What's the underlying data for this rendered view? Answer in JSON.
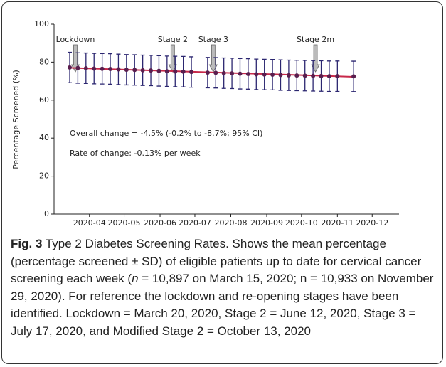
{
  "chart_data": {
    "type": "errorbar-line",
    "ylabel": "Percentage Screened (%)",
    "x": [
      0,
      1,
      2,
      3,
      4,
      5,
      6,
      7,
      8,
      9,
      10,
      11,
      12,
      13,
      14,
      15,
      16,
      17,
      18,
      19,
      20,
      21,
      22,
      23,
      24,
      25,
      26,
      27,
      28,
      29,
      30,
      31,
      32,
      33,
      34,
      35
    ],
    "values": [
      77.2,
      76.9,
      76.8,
      76.6,
      76.5,
      76.4,
      76.2,
      76.0,
      75.9,
      75.7,
      75.6,
      75.4,
      75.2,
      75.1,
      75.0,
      74.8,
      null,
      74.5,
      74.4,
      74.2,
      74.1,
      73.9,
      73.8,
      73.6,
      73.5,
      73.4,
      73.2,
      73.1,
      73.0,
      72.9,
      72.8,
      72.7,
      72.6,
      72.6,
      null,
      72.5
    ],
    "errors": [
      8,
      8,
      8,
      8,
      8,
      8,
      8,
      8,
      8,
      8,
      8,
      8,
      8,
      8,
      8,
      8,
      null,
      8,
      8,
      8,
      8,
      8,
      8,
      8,
      8,
      8,
      8,
      8,
      8,
      8,
      8,
      8,
      8,
      8,
      null,
      8
    ],
    "color": "#5a1e4e",
    "error_color": "#2b2670",
    "trend": {
      "x": [
        0,
        35
      ],
      "values": [
        77.0,
        72.3
      ],
      "color": "#c8294a"
    },
    "xlim": [
      -1.93,
      40.6
    ],
    "ylim": [
      0,
      100
    ],
    "xticks": [
      {
        "value": 2.43,
        "label": "2020-04"
      },
      {
        "value": 6.71,
        "label": "2020-05"
      },
      {
        "value": 11.14,
        "label": "2020-06"
      },
      {
        "value": 15.43,
        "label": "2020-07"
      },
      {
        "value": 19.86,
        "label": "2020-08"
      },
      {
        "value": 24.29,
        "label": "2020-09"
      },
      {
        "value": 28.57,
        "label": "2020-10"
      },
      {
        "value": 33,
        "label": "2020-11"
      },
      {
        "value": 37.29,
        "label": "2020-12"
      }
    ],
    "yticks": [
      0,
      20,
      40,
      60,
      80,
      100
    ],
    "events": [
      {
        "x": 0.7,
        "label": "Lockdown"
      },
      {
        "x": 12.7,
        "label": "Stage 2"
      },
      {
        "x": 17.7,
        "label": "Stage 3"
      },
      {
        "x": 30.3,
        "label": "Stage 2m"
      }
    ],
    "annotations": [
      "Overall change = -4.5% (-0.2% to -8.7%; 95% CI)",
      "Rate of change: -0.13% per week"
    ]
  },
  "caption": {
    "label": "Fig. 3",
    "parts": [
      "Type 2 Diabetes Screening Rates. Shows the mean percentage (percentage screened ± SD) of eligible patients up to date for cervical cancer screening each week (",
      "n",
      " = 10,897 on March 15, 2020; n = 10,933 on November 29, 2020). For reference the lockdown and re-opening stages have been identified. Lockdown = March 20, 2020, Stage 2 = June 12, 2020, Stage 3 = July 17, 2020, and Modified Stage 2 = October 13, 2020"
    ]
  }
}
